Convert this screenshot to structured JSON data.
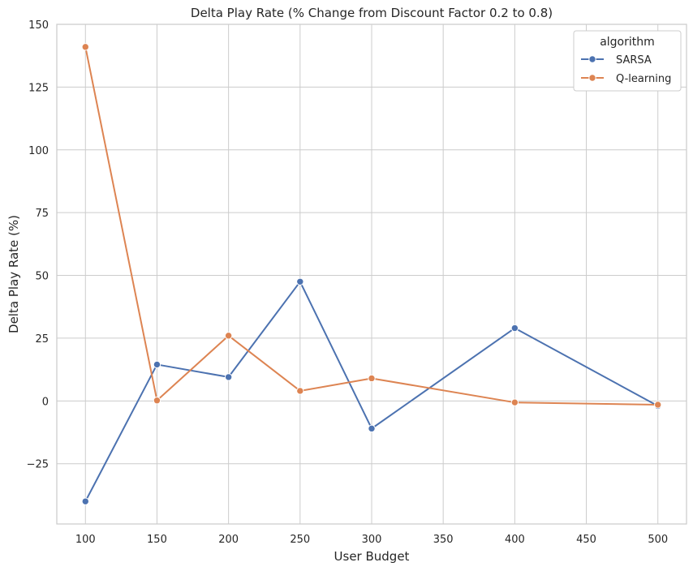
{
  "chart_data": {
    "type": "line",
    "title": "Delta Play Rate (% Change from Discount Factor 0.2 to 0.8)",
    "xlabel": "User Budget",
    "ylabel": "Delta Play Rate (%)",
    "xlim": [
      80,
      520
    ],
    "ylim": [
      -49,
      150
    ],
    "xticks": [
      100,
      150,
      200,
      250,
      300,
      350,
      400,
      450,
      500
    ],
    "yticks": [
      -25,
      0,
      25,
      50,
      75,
      100,
      125,
      150
    ],
    "grid": true,
    "legend": {
      "title": "algorithm",
      "position": "top-right"
    },
    "x": [
      100,
      150,
      200,
      250,
      300,
      400,
      500
    ],
    "series": [
      {
        "name": "SARSA",
        "color": "#4c72b0",
        "values": [
          -40,
          14.5,
          9.5,
          47.5,
          -11,
          29,
          -2
        ]
      },
      {
        "name": "Q-learning",
        "color": "#dd8452",
        "values": [
          141,
          0.2,
          26,
          4,
          9,
          -0.6,
          -1.5
        ]
      }
    ]
  }
}
